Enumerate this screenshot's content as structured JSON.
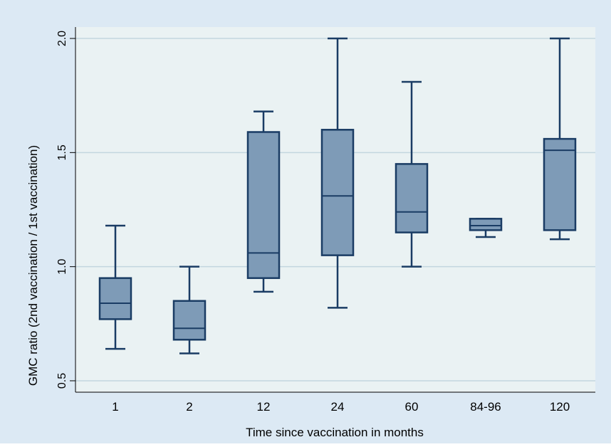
{
  "chart_data": {
    "type": "box",
    "xlabel": "Time since vaccination in months",
    "ylabel": "GMC ratio (2nd vaccination / 1st vaccination)",
    "ylim": [
      0.45,
      2.05
    ],
    "yticks": [
      0.5,
      1.0,
      1.5,
      2.0
    ],
    "ytick_labels": [
      "0.5",
      "1.0",
      "1.5",
      "2.0"
    ],
    "grid": true,
    "categories": [
      "1",
      "2",
      "12",
      "24",
      "60",
      "84-96",
      "120"
    ],
    "boxes": [
      {
        "category": "1",
        "min": 0.64,
        "q1": 0.77,
        "median": 0.84,
        "q3": 0.95,
        "max": 1.18
      },
      {
        "category": "2",
        "min": 0.62,
        "q1": 0.68,
        "median": 0.73,
        "q3": 0.85,
        "max": 1.0
      },
      {
        "category": "12",
        "min": 0.89,
        "q1": 0.95,
        "median": 1.06,
        "q3": 1.59,
        "max": 1.68
      },
      {
        "category": "24",
        "min": 0.82,
        "q1": 1.05,
        "median": 1.31,
        "q3": 1.6,
        "max": 2.0
      },
      {
        "category": "60",
        "min": 1.0,
        "q1": 1.15,
        "median": 1.24,
        "q3": 1.45,
        "max": 1.81
      },
      {
        "category": "84-96",
        "min": 1.13,
        "q1": 1.16,
        "median": 1.18,
        "q3": 1.21,
        "max": 1.21
      },
      {
        "category": "120",
        "min": 1.12,
        "q1": 1.16,
        "median": 1.51,
        "q3": 1.56,
        "max": 2.0
      }
    ],
    "colors": {
      "outer_bg": "#dce9f4",
      "plot_bg": "#eaf2f3",
      "box_fill": "#7e9bb7",
      "box_stroke": "#1a3c64",
      "grid": "#c3d6df"
    }
  }
}
